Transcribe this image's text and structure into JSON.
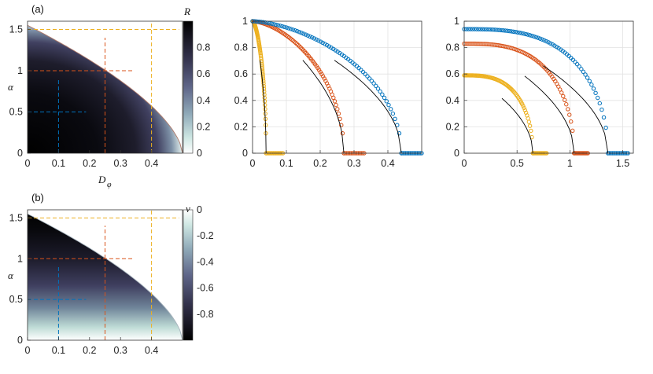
{
  "panel_a": {
    "label": "(a)",
    "colorbar_title": "R",
    "xlabel": "D",
    "xlabel_sub": "φ",
    "ylabel": "α"
  },
  "panel_b": {
    "label": "(b)",
    "colorbar_title": "v",
    "ylabel": "α"
  },
  "colors": {
    "blue": "#0072BD",
    "orange": "#D95319",
    "yellow": "#EDB120"
  },
  "chart_data": [
    {
      "type": "heatmap",
      "id": "a",
      "xlabel": "Dφ",
      "ylabel": "α",
      "xlim": [
        0,
        0.5
      ],
      "ylim": [
        0,
        1.6
      ],
      "xticks": [
        "0",
        "0.1",
        "0.2",
        "0.3",
        "0.4"
      ],
      "yticks": [
        "0",
        "0.5",
        "1",
        "1.5"
      ],
      "colorbar": {
        "label": "R",
        "range": [
          0,
          1
        ],
        "ticks": [
          "0",
          "0.2",
          "0.4",
          "0.6",
          "0.8"
        ]
      },
      "boundary": {
        "alpha_at_D0": 1.55,
        "D_at_alpha0": 0.5
      },
      "guide_lines": [
        {
          "color": "blue",
          "D": 0.1,
          "alpha": 0.5
        },
        {
          "color": "orange",
          "D": 0.25,
          "alpha": 1.0
        },
        {
          "color": "yellow",
          "D": 0.4,
          "alpha": 1.5
        }
      ]
    },
    {
      "type": "heatmap",
      "id": "b",
      "ylabel": "α",
      "xlim": [
        0,
        0.5
      ],
      "ylim": [
        0,
        1.6
      ],
      "xticks": [
        "0",
        "0.1",
        "0.2",
        "0.3",
        "0.4"
      ],
      "yticks": [
        "0",
        "0.5",
        "1",
        "1.5"
      ],
      "colorbar": {
        "label": "v",
        "range": [
          -1,
          0
        ],
        "ticks": [
          "0",
          "-0.2",
          "-0.4",
          "-0.6",
          "-0.8"
        ]
      },
      "guide_lines": [
        {
          "color": "blue",
          "D": 0.1,
          "alpha": 0.5
        },
        {
          "color": "orange",
          "D": 0.25,
          "alpha": 1.0
        },
        {
          "color": "yellow",
          "D": 0.4,
          "alpha": 1.5
        }
      ]
    },
    {
      "type": "scatter",
      "id": "c",
      "xlim": [
        0,
        0.5
      ],
      "ylim": [
        0,
        1
      ],
      "xticks": [
        "0",
        "0.1",
        "0.2",
        "0.3",
        "0.4"
      ],
      "yticks": [
        "0",
        "0.2",
        "0.4",
        "0.6",
        "0.8",
        "1"
      ],
      "series": [
        {
          "color": "yellow",
          "x_end": 0.04,
          "x_max": 0.09
        },
        {
          "color": "orange",
          "x_end": 0.27,
          "x_max": 0.33
        },
        {
          "color": "blue",
          "x_end": 0.44,
          "x_max": 0.5
        }
      ]
    },
    {
      "type": "scatter",
      "id": "d",
      "xlim": [
        0,
        1.6
      ],
      "ylim": [
        0,
        1
      ],
      "xticks": [
        "0",
        "0.5",
        "1",
        "1.5"
      ],
      "yticks": [
        "0",
        "0.2",
        "0.4",
        "0.6",
        "0.8",
        "1"
      ],
      "series": [
        {
          "color": "yellow",
          "y0": 0.59,
          "x_end": 0.65,
          "x_max": 0.78
        },
        {
          "color": "orange",
          "y0": 0.83,
          "x_end": 1.04,
          "x_max": 1.17
        },
        {
          "color": "blue",
          "y0": 0.94,
          "x_end": 1.36,
          "x_max": 1.55
        }
      ]
    }
  ]
}
